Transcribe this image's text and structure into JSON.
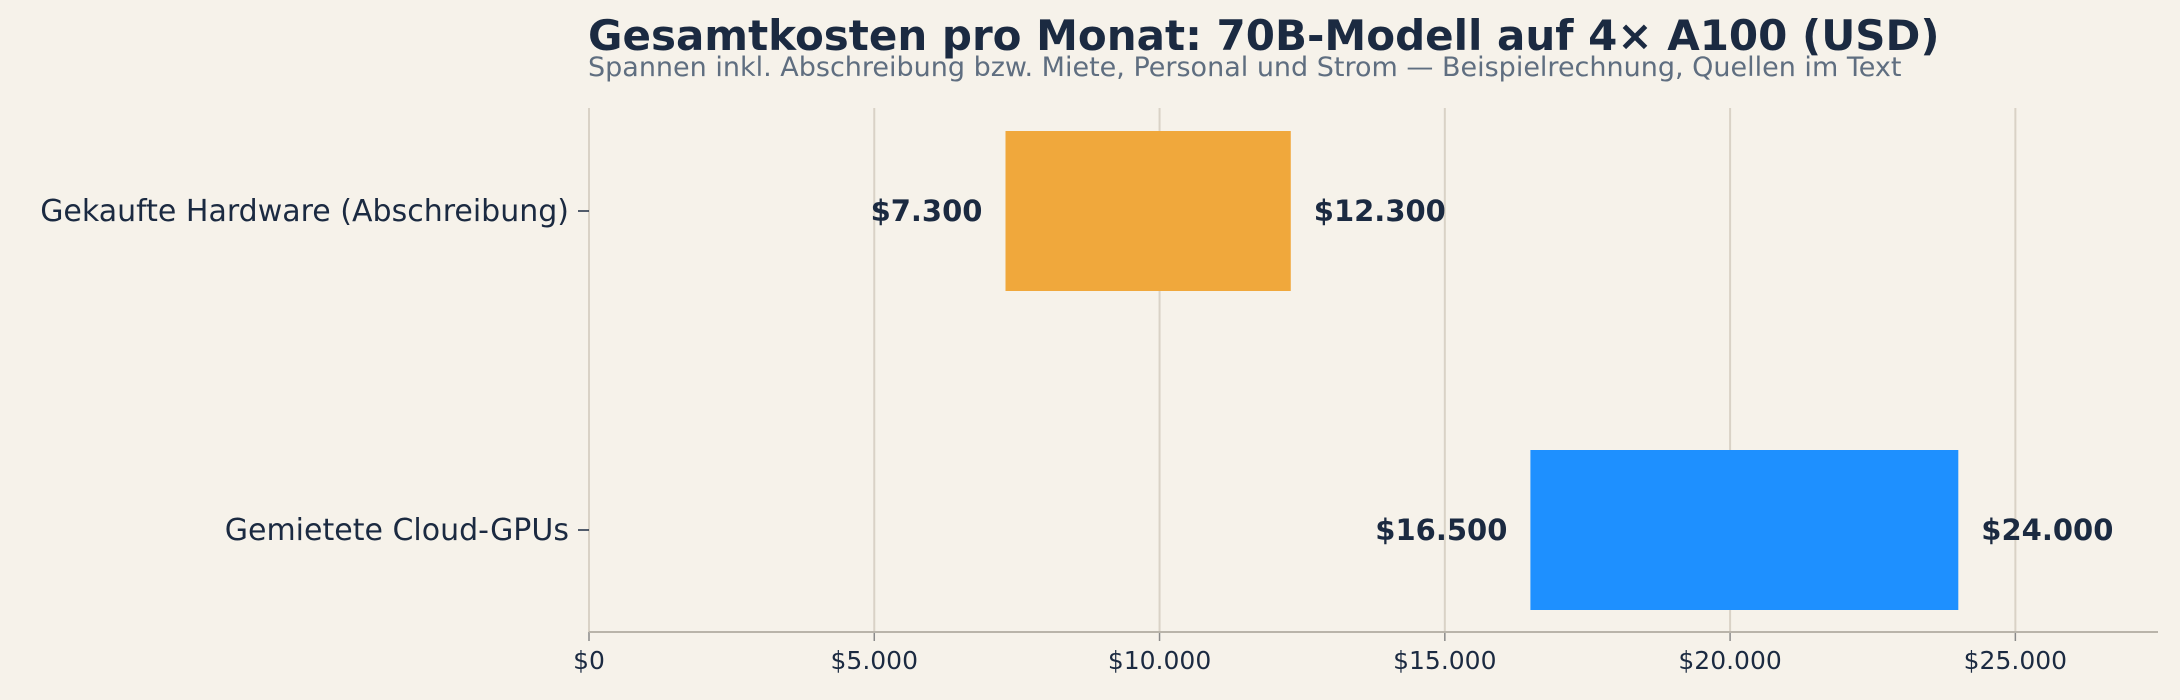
{
  "chart_data": {
    "type": "bar",
    "orientation": "horizontal",
    "style": "floating-range",
    "title": "Gesamtkosten pro Monat: 70B-Modell auf 4× A100 (USD)",
    "subtitle": "Spannen inkl. Abschreibung bzw. Miete, Personal und Strom — Beispielrechnung, Quellen im Text",
    "categories": [
      "Gekaufte Hardware (Abschreibung)",
      "Gemietete Cloud-GPUs"
    ],
    "ranges": [
      {
        "low": 7300,
        "high": 12300,
        "low_label": "$7.300",
        "high_label": "$12.300",
        "color": "#f0a83c"
      },
      {
        "low": 16500,
        "high": 24000,
        "low_label": "$16.500",
        "high_label": "$24.000",
        "color": "#1e90ff"
      }
    ],
    "xlim": [
      0,
      27500
    ],
    "x_ticks": [
      0,
      5000,
      10000,
      15000,
      20000,
      25000
    ],
    "x_tick_labels": [
      "$0",
      "$5.000",
      "$10.000",
      "$15.000",
      "$20.000",
      "$25.000"
    ],
    "grid": "vertical",
    "xlabel": "",
    "ylabel": ""
  }
}
